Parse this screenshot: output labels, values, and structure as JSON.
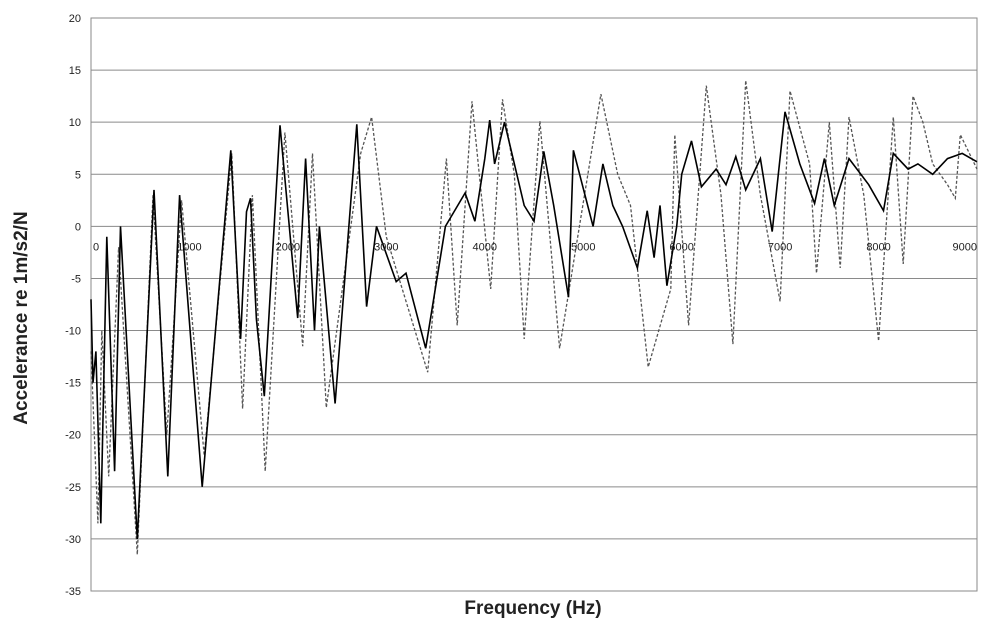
{
  "chart_data": {
    "type": "line",
    "xlabel": "Frequency (Hz)",
    "ylabel": "Accelerance re 1m/s2/N",
    "xlim": [
      0,
      9000
    ],
    "ylim": [
      -35,
      20
    ],
    "x_ticks": [
      "0",
      "1000",
      "2000",
      "3000",
      "4000",
      "5000",
      "6000",
      "7000",
      "8000",
      "9000"
    ],
    "y_ticks": [
      "20",
      "15",
      "10",
      "5",
      "0",
      "-5",
      "-10",
      "-15",
      "-20",
      "-25",
      "-30",
      "-35"
    ],
    "grid": true,
    "legend": "none",
    "series": [
      {
        "style": "solid",
        "color": "#000000",
        "points": [
          [
            0,
            -7
          ],
          [
            20,
            -15
          ],
          [
            50,
            -12
          ],
          [
            100,
            -28.5
          ],
          [
            160,
            -1
          ],
          [
            240,
            -23.5
          ],
          [
            300,
            0
          ],
          [
            470,
            -30
          ],
          [
            640,
            3.5
          ],
          [
            780,
            -24
          ],
          [
            900,
            3
          ],
          [
            1130,
            -25
          ],
          [
            1420,
            7.3
          ],
          [
            1520,
            -10.8
          ],
          [
            1580,
            1.4
          ],
          [
            1620,
            2.7
          ],
          [
            1680,
            -8.9
          ],
          [
            1760,
            -16.3
          ],
          [
            1920,
            9.7
          ],
          [
            2100,
            -8.8
          ],
          [
            2180,
            6.5
          ],
          [
            2270,
            -10
          ],
          [
            2320,
            0
          ],
          [
            2480,
            -17
          ],
          [
            2700,
            9.8
          ],
          [
            2800,
            -7.7
          ],
          [
            2900,
            0
          ],
          [
            3100,
            -5.3
          ],
          [
            3200,
            -4.5
          ],
          [
            3400,
            -11.7
          ],
          [
            3600,
            0
          ],
          [
            3800,
            3.2
          ],
          [
            3900,
            0.5
          ],
          [
            4000,
            6.5
          ],
          [
            4050,
            10.2
          ],
          [
            4100,
            6
          ],
          [
            4200,
            10
          ],
          [
            4400,
            2
          ],
          [
            4500,
            0.5
          ],
          [
            4600,
            7.2
          ],
          [
            4700,
            2
          ],
          [
            4850,
            -6.8
          ],
          [
            4900,
            7.3
          ],
          [
            5100,
            0
          ],
          [
            5200,
            6
          ],
          [
            5300,
            2
          ],
          [
            5400,
            0
          ],
          [
            5550,
            -4
          ],
          [
            5650,
            1.5
          ],
          [
            5720,
            -3
          ],
          [
            5780,
            2
          ],
          [
            5850,
            -5.7
          ],
          [
            5950,
            0
          ],
          [
            6000,
            5
          ],
          [
            6100,
            8.2
          ],
          [
            6200,
            3.8
          ],
          [
            6350,
            5.5
          ],
          [
            6450,
            4
          ],
          [
            6550,
            6.7
          ],
          [
            6650,
            3.5
          ],
          [
            6800,
            6.5
          ],
          [
            6920,
            -0.5
          ],
          [
            7050,
            11
          ],
          [
            7200,
            6
          ],
          [
            7350,
            2.2
          ],
          [
            7450,
            6.5
          ],
          [
            7550,
            2
          ],
          [
            7700,
            6.5
          ],
          [
            7900,
            4
          ],
          [
            8050,
            1.5
          ],
          [
            8150,
            7
          ],
          [
            8300,
            5.5
          ],
          [
            8400,
            6
          ],
          [
            8550,
            5
          ],
          [
            8700,
            6.5
          ],
          [
            8850,
            7
          ],
          [
            9000,
            6.2
          ]
        ]
      },
      {
        "style": "dashed",
        "color": "#555555",
        "points": [
          [
            0,
            -12
          ],
          [
            70,
            -28.5
          ],
          [
            110,
            -10
          ],
          [
            180,
            -24
          ],
          [
            280,
            -2
          ],
          [
            470,
            -31.5
          ],
          [
            630,
            3
          ],
          [
            770,
            -20
          ],
          [
            920,
            2.5
          ],
          [
            1150,
            -22
          ],
          [
            1430,
            7
          ],
          [
            1540,
            -17.5
          ],
          [
            1640,
            3
          ],
          [
            1770,
            -23.5
          ],
          [
            1970,
            9
          ],
          [
            2150,
            -11.5
          ],
          [
            2250,
            7
          ],
          [
            2390,
            -17.4
          ],
          [
            2740,
            7
          ],
          [
            2850,
            10.5
          ],
          [
            3000,
            -1
          ],
          [
            3420,
            -14
          ],
          [
            3610,
            6.5
          ],
          [
            3720,
            -9.5
          ],
          [
            3870,
            12
          ],
          [
            4060,
            -6
          ],
          [
            4180,
            12.2
          ],
          [
            4300,
            5
          ],
          [
            4400,
            -10.8
          ],
          [
            4560,
            10.1
          ],
          [
            4760,
            -11.7
          ],
          [
            5180,
            12.7
          ],
          [
            5350,
            5
          ],
          [
            5480,
            2
          ],
          [
            5660,
            -13.5
          ],
          [
            5890,
            -6
          ],
          [
            5930,
            8.8
          ],
          [
            6070,
            -9.5
          ],
          [
            6250,
            13.5
          ],
          [
            6400,
            3
          ],
          [
            6520,
            -11.3
          ],
          [
            6650,
            14
          ],
          [
            6800,
            3
          ],
          [
            7000,
            -7.2
          ],
          [
            7100,
            13
          ],
          [
            7300,
            6
          ],
          [
            7370,
            -4.5
          ],
          [
            7500,
            10
          ],
          [
            7610,
            -4
          ],
          [
            7700,
            10.5
          ],
          [
            7850,
            3
          ],
          [
            8000,
            -11
          ],
          [
            8150,
            10.5
          ],
          [
            8250,
            -3.6
          ],
          [
            8350,
            12.5
          ],
          [
            8450,
            10
          ],
          [
            8550,
            6
          ],
          [
            8700,
            4
          ],
          [
            8780,
            2.7
          ],
          [
            8830,
            8.8
          ],
          [
            9000,
            5.5
          ]
        ]
      }
    ]
  }
}
